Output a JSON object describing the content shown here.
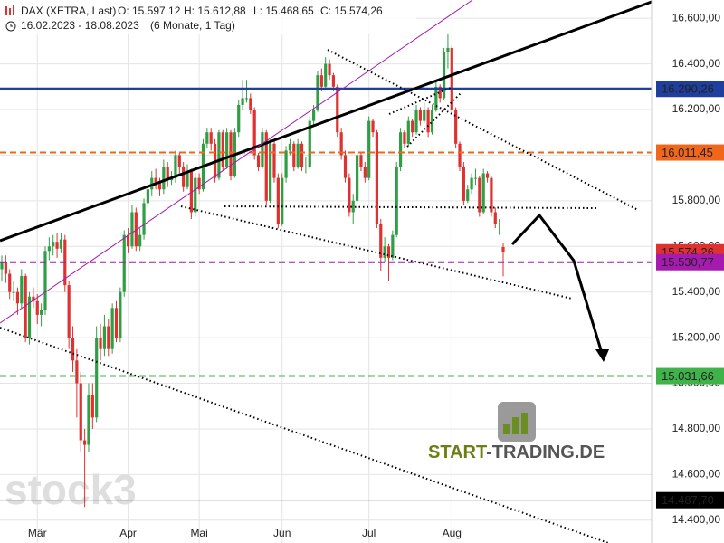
{
  "chart_data": {
    "type": "candlestick",
    "title": "DAX (XETRA, Last)",
    "ohlc_labels": [
      "O: 15.597,12",
      "H: 15.612,88",
      "L: 15.468,65",
      "C: 15.574,26"
    ],
    "subtitle": "16.02.2023 - 18.08.2023",
    "period": "(6 Monate, 1 Tag)",
    "watermark": "stock3",
    "logo": {
      "part1": "START",
      "part2": "-TRADING.DE"
    },
    "up_color": "#2f9e44",
    "down_color": "#e03131",
    "grid": true,
    "ylim": [
      14300,
      16680
    ],
    "yticks": [
      {
        "value": 14400,
        "label": "14.400,00"
      },
      {
        "value": 14600,
        "label": "14.600,00"
      },
      {
        "value": 14800,
        "label": "14.800,00"
      },
      {
        "value": 15000,
        "label": "15.000,00"
      },
      {
        "value": 15200,
        "label": "15.200,00"
      },
      {
        "value": 15400,
        "label": "15.400,00"
      },
      {
        "value": 15600,
        "label": "15.600,00"
      },
      {
        "value": 15800,
        "label": "15.800,00"
      },
      {
        "value": 16000,
        "label": "16.000,00"
      },
      {
        "value": 16200,
        "label": "16.200,00"
      },
      {
        "value": 16400,
        "label": "16.400,00"
      },
      {
        "value": 16600,
        "label": "16.600,00"
      }
    ],
    "levels": [
      {
        "value": 16290.26,
        "label": "16.290,26",
        "color": "#1f3f9f",
        "dash": false,
        "width": 3,
        "line": true
      },
      {
        "value": 16011.45,
        "label": "16.011,45",
        "color": "#f0661a",
        "dash": true,
        "width": 2,
        "line": true
      },
      {
        "value": 15574.26,
        "label": "15.574,26",
        "color": "#e03131",
        "dash": false,
        "width": 1,
        "line": false
      },
      {
        "value": 15530.77,
        "label": "15.530,77",
        "color": "#a61ab0",
        "dash": true,
        "width": 2,
        "line": true
      },
      {
        "value": 15031.66,
        "label": "15.031,66",
        "color": "#3fb34a",
        "dash": true,
        "width": 2,
        "line": true
      },
      {
        "value": 14487.7,
        "label": "14.487,70",
        "color": "#000000",
        "dash": false,
        "width": 1,
        "line": true
      }
    ],
    "categories": [
      null,
      null,
      null,
      null,
      null,
      null,
      null,
      null,
      null,
      "Mär",
      null,
      null,
      null,
      null,
      null,
      null,
      null,
      null,
      null,
      null,
      null,
      null,
      null,
      null,
      null,
      null,
      null,
      null,
      null,
      null,
      null,
      null,
      "Apr",
      null,
      null,
      null,
      null,
      null,
      null,
      null,
      null,
      null,
      null,
      null,
      null,
      null,
      null,
      null,
      null,
      null,
      "Mai",
      null,
      null,
      null,
      null,
      null,
      null,
      null,
      null,
      null,
      null,
      null,
      null,
      null,
      null,
      null,
      null,
      null,
      null,
      null,
      null,
      "Jun",
      null,
      null,
      null,
      null,
      null,
      null,
      null,
      null,
      null,
      null,
      null,
      null,
      null,
      null,
      null,
      null,
      null,
      null,
      null,
      null,
      null,
      "Jul",
      null,
      null,
      null,
      null,
      null,
      null,
      null,
      null,
      null,
      null,
      null,
      null,
      null,
      null,
      null,
      null,
      null,
      null,
      null,
      null,
      "Aug",
      null,
      null,
      null,
      null,
      null,
      null,
      null,
      null,
      null,
      null,
      null,
      null,
      null
    ],
    "candles": [
      [
        15500,
        15560,
        15450,
        15530
      ],
      [
        15530,
        15560,
        15440,
        15480
      ],
      [
        15480,
        15500,
        15370,
        15400
      ],
      [
        15400,
        15450,
        15360,
        15400
      ],
      [
        15400,
        15420,
        15300,
        15350
      ],
      [
        15350,
        15500,
        15330,
        15470
      ],
      [
        15470,
        15480,
        15180,
        15200
      ],
      [
        15200,
        15400,
        15170,
        15380
      ],
      [
        15380,
        15420,
        15330,
        15360
      ],
      [
        15360,
        15390,
        15260,
        15300
      ],
      [
        15300,
        15350,
        15250,
        15320
      ],
      [
        15320,
        15600,
        15300,
        15580
      ],
      [
        15580,
        15640,
        15540,
        15600
      ],
      [
        15600,
        15650,
        15560,
        15620
      ],
      [
        15620,
        15660,
        15550,
        15590
      ],
      [
        15590,
        15660,
        15570,
        15630
      ],
      [
        15630,
        15650,
        15400,
        15430
      ],
      [
        15430,
        15450,
        15150,
        15200
      ],
      [
        15200,
        15250,
        15050,
        15100
      ],
      [
        15100,
        15150,
        14850,
        15000
      ],
      [
        15000,
        15050,
        14700,
        14750
      ],
      [
        14750,
        14800,
        14458,
        14730
      ],
      [
        14730,
        15000,
        14700,
        14950
      ],
      [
        14950,
        15000,
        14800,
        14850
      ],
      [
        14850,
        15250,
        14830,
        15200
      ],
      [
        15200,
        15260,
        15100,
        15150
      ],
      [
        15150,
        15300,
        15120,
        15250
      ],
      [
        15250,
        15280,
        15120,
        15150
      ],
      [
        15150,
        15350,
        15130,
        15330
      ],
      [
        15330,
        15360,
        15180,
        15200
      ],
      [
        15200,
        15420,
        15180,
        15400
      ],
      [
        15400,
        15670,
        15380,
        15650
      ],
      [
        15650,
        15680,
        15570,
        15600
      ],
      [
        15600,
        15780,
        15590,
        15750
      ],
      [
        15750,
        15770,
        15580,
        15600
      ],
      [
        15600,
        15680,
        15580,
        15650
      ],
      [
        15650,
        15810,
        15630,
        15790
      ],
      [
        15790,
        15880,
        15770,
        15850
      ],
      [
        15850,
        15930,
        15820,
        15900
      ],
      [
        15900,
        15940,
        15850,
        15880
      ],
      [
        15880,
        15900,
        15820,
        15850
      ],
      [
        15850,
        15980,
        15830,
        15950
      ],
      [
        15950,
        15970,
        15860,
        15890
      ],
      [
        15890,
        15930,
        15870,
        15900
      ],
      [
        15900,
        16020,
        15880,
        16000
      ],
      [
        16000,
        16010,
        15920,
        15950
      ],
      [
        15950,
        15970,
        15840,
        15860
      ],
      [
        15860,
        15960,
        15850,
        15930
      ],
      [
        15930,
        15940,
        15720,
        15750
      ],
      [
        15750,
        15920,
        15730,
        15900
      ],
      [
        15900,
        15920,
        15830,
        15850
      ],
      [
        15850,
        16070,
        15840,
        16050
      ],
      [
        16050,
        16120,
        16030,
        16100
      ],
      [
        16100,
        16120,
        16020,
        16050
      ],
      [
        16050,
        16070,
        15880,
        15900
      ],
      [
        15900,
        16110,
        15890,
        16100
      ],
      [
        16100,
        16110,
        15930,
        15950
      ],
      [
        15950,
        16120,
        15940,
        16100
      ],
      [
        16100,
        16110,
        15890,
        15910
      ],
      [
        15910,
        16120,
        15900,
        16100
      ],
      [
        16100,
        16240,
        16080,
        16220
      ],
      [
        16220,
        16330,
        16200,
        16250
      ],
      [
        16250,
        16330,
        16230,
        16250
      ],
      [
        16250,
        16270,
        16180,
        16200
      ],
      [
        16200,
        16210,
        15980,
        16000
      ],
      [
        16000,
        16010,
        15930,
        15950
      ],
      [
        15950,
        16120,
        15940,
        16100
      ],
      [
        16100,
        16110,
        15780,
        15800
      ],
      [
        15800,
        16070,
        15790,
        16050
      ],
      [
        16050,
        16060,
        15880,
        15900
      ],
      [
        15900,
        15920,
        15680,
        15700
      ],
      [
        15700,
        15920,
        15690,
        15900
      ],
      [
        15900,
        16040,
        15880,
        16020
      ],
      [
        16020,
        16070,
        16000,
        16050
      ],
      [
        16050,
        16060,
        15930,
        15950
      ],
      [
        15950,
        16070,
        15940,
        16050
      ],
      [
        16050,
        16060,
        15930,
        15950
      ],
      [
        15950,
        15990,
        15920,
        15950
      ],
      [
        15950,
        16170,
        15940,
        16150
      ],
      [
        16150,
        16220,
        16130,
        16200
      ],
      [
        16200,
        16370,
        16190,
        16350
      ],
      [
        16350,
        16380,
        16280,
        16300
      ],
      [
        16300,
        16430,
        16290,
        16400
      ],
      [
        16400,
        16420,
        16330,
        16350
      ],
      [
        16350,
        16360,
        16280,
        16300
      ],
      [
        16300,
        16310,
        16080,
        16100
      ],
      [
        16100,
        16120,
        15980,
        16000
      ],
      [
        16000,
        16020,
        15880,
        15900
      ],
      [
        15900,
        15920,
        15730,
        15750
      ],
      [
        15750,
        15830,
        15700,
        15800
      ],
      [
        15800,
        16020,
        15790,
        16000
      ],
      [
        16000,
        16010,
        15930,
        15950
      ],
      [
        15950,
        15970,
        15880,
        15900
      ],
      [
        15900,
        16170,
        15890,
        16150
      ],
      [
        16150,
        16160,
        16080,
        16100
      ],
      [
        16100,
        16110,
        15680,
        15700
      ],
      [
        15700,
        15720,
        15490,
        15550
      ],
      [
        15550,
        15640,
        15530,
        15600
      ],
      [
        15600,
        15610,
        15450,
        15550
      ],
      [
        15550,
        15670,
        15540,
        15650
      ],
      [
        15650,
        15970,
        15640,
        15950
      ],
      [
        15950,
        16120,
        15930,
        16100
      ],
      [
        16100,
        16110,
        16030,
        16050
      ],
      [
        16050,
        16170,
        16040,
        16150
      ],
      [
        16150,
        16160,
        16080,
        16100
      ],
      [
        16100,
        16220,
        16090,
        16200
      ],
      [
        16200,
        16210,
        16130,
        16150
      ],
      [
        16150,
        16230,
        16140,
        16200
      ],
      [
        16200,
        16210,
        16080,
        16100
      ],
      [
        16100,
        16220,
        16090,
        16200
      ],
      [
        16200,
        16320,
        16190,
        16300
      ],
      [
        16300,
        16310,
        16230,
        16250
      ],
      [
        16250,
        16470,
        16240,
        16450
      ],
      [
        16450,
        16530,
        16380,
        16470
      ],
      [
        16470,
        16480,
        16180,
        16200
      ],
      [
        16200,
        16210,
        16030,
        16050
      ],
      [
        16050,
        16060,
        15930,
        15950
      ],
      [
        15950,
        15970,
        15780,
        15800
      ],
      [
        15800,
        15870,
        15790,
        15850
      ],
      [
        15850,
        15920,
        15830,
        15900
      ],
      [
        15900,
        15940,
        15870,
        15900
      ],
      [
        15900,
        15910,
        15730,
        15750
      ],
      [
        15750,
        15940,
        15740,
        15920
      ],
      [
        15920,
        15930,
        15880,
        15900
      ],
      [
        15900,
        15910,
        15730,
        15750
      ],
      [
        15750,
        15770,
        15680,
        15700
      ],
      [
        15700,
        15720,
        15650,
        15700
      ],
      [
        15597.12,
        15612.88,
        15468.65,
        15574.26
      ]
    ]
  }
}
